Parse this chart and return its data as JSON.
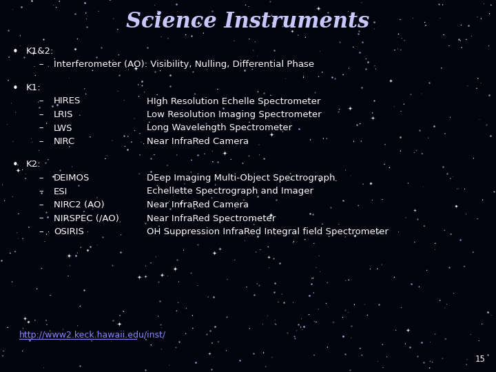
{
  "title": "Science Instruments",
  "title_color": "#c8c8ff",
  "title_fontsize": 22,
  "bg_color": "#03030e",
  "text_color": "#ffffff",
  "url_color": "#8888ff",
  "url_text": "http://www2.keck.hawaii.edu/inst/",
  "page_num": "15",
  "sections": [
    {
      "header": "K1&2:",
      "items": [
        {
          "col1": "Interferometer (AO): Visibility, Nulling, Differential Phase",
          "col2": ""
        }
      ]
    },
    {
      "header": "K1:",
      "items": [
        {
          "col1": "HIRES",
          "col2": "HIgh Resolution Echelle Spectrometer"
        },
        {
          "col1": "LRIS",
          "col2": "Low Resolution Imaging Spectrometer"
        },
        {
          "col1": "LWS",
          "col2": "Long Wavelength Spectrometer"
        },
        {
          "col1": "NIRC",
          "col2": "Near InfraRed Camera"
        }
      ]
    },
    {
      "header": "K2:",
      "items": [
        {
          "col1": "DEIMOS",
          "col2": "DEep Imaging Multi-Object Spectrograph"
        },
        {
          "col1": "ESI",
          "col2": "Echellette Spectrograph and Imager"
        },
        {
          "col1": "NIRC2 (AO)",
          "col2": "Near InfraRed Camera"
        },
        {
          "col1": "NIRSPEC (/AO)",
          "col2": "Near InfraRed Spectrometer"
        },
        {
          "col1": "OSIRIS",
          "col2": "OH Suppression InfraRed Integral field Spectrometer"
        }
      ]
    }
  ],
  "star_seed1": 42,
  "star_seed2": 123,
  "star_seed3": 77
}
